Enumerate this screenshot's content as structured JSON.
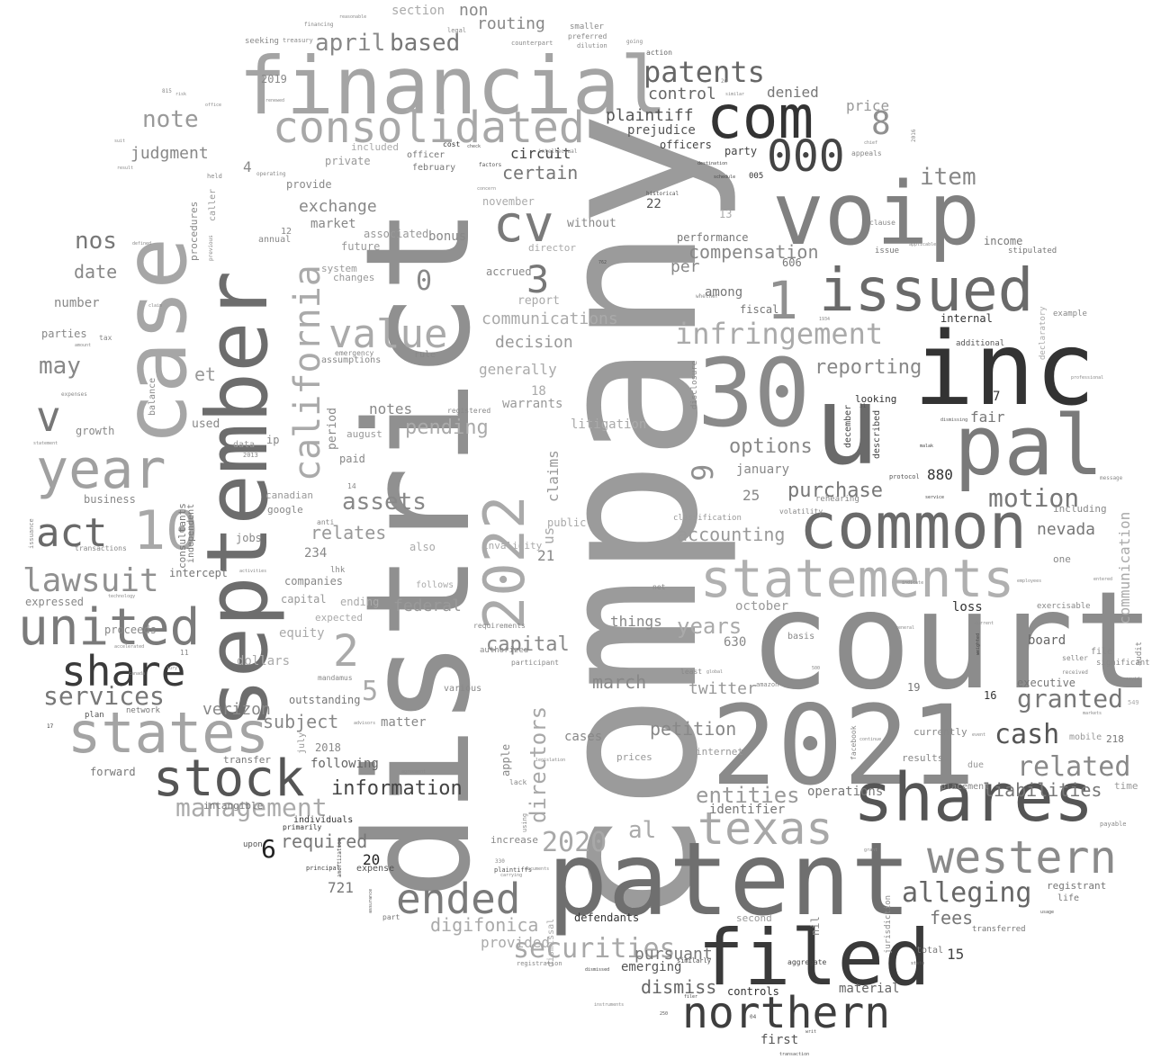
{
  "title": "Word cloud",
  "words": [
    {
      "text": "company"
    },
    {
      "text": "district"
    },
    {
      "text": "court"
    },
    {
      "text": "2021"
    },
    {
      "text": "patent"
    },
    {
      "text": "september"
    },
    {
      "text": "case"
    },
    {
      "text": "financial"
    },
    {
      "text": "inc"
    },
    {
      "text": "voip"
    },
    {
      "text": "filed"
    },
    {
      "text": "shares"
    },
    {
      "text": "common"
    },
    {
      "text": "statements"
    },
    {
      "text": "30"
    },
    {
      "text": "pal"
    },
    {
      "text": "issued"
    },
    {
      "text": "u"
    },
    {
      "text": "com"
    },
    {
      "text": "000"
    },
    {
      "text": "consolidated"
    },
    {
      "text": "2022"
    },
    {
      "text": "cv"
    },
    {
      "text": "northern"
    },
    {
      "text": "western"
    },
    {
      "text": "states"
    },
    {
      "text": "united"
    },
    {
      "text": "year"
    },
    {
      "text": "stock"
    },
    {
      "text": "share"
    },
    {
      "text": "texas"
    },
    {
      "text": "ended"
    },
    {
      "text": "10"
    },
    {
      "text": "act"
    },
    {
      "text": "lawsuit"
    },
    {
      "text": "california"
    },
    {
      "text": "v"
    },
    {
      "text": "value"
    },
    {
      "text": "patents"
    },
    {
      "text": "infringement"
    },
    {
      "text": "alleging"
    },
    {
      "text": "related"
    },
    {
      "text": "cash"
    },
    {
      "text": "securities"
    },
    {
      "text": "management"
    },
    {
      "text": "2020"
    },
    {
      "text": "8"
    },
    {
      "text": "1"
    },
    {
      "text": "3"
    },
    {
      "text": "2"
    },
    {
      "text": "9"
    },
    {
      "text": "services"
    },
    {
      "text": "motion"
    },
    {
      "text": "granted"
    },
    {
      "text": "entities"
    },
    {
      "text": "liabilities"
    },
    {
      "text": "assets"
    },
    {
      "text": "capital"
    },
    {
      "text": "april"
    },
    {
      "text": "based"
    },
    {
      "text": "may"
    },
    {
      "text": "note"
    },
    {
      "text": "years"
    },
    {
      "text": "nos"
    },
    {
      "text": "directors"
    },
    {
      "text": "information"
    },
    {
      "text": "digifonica"
    },
    {
      "text": "item"
    },
    {
      "text": "options"
    },
    {
      "text": "dismiss"
    },
    {
      "text": "reporting"
    },
    {
      "text": "purchase"
    },
    {
      "text": "pending"
    },
    {
      "text": "relates"
    },
    {
      "text": "compensation"
    },
    {
      "text": "control"
    },
    {
      "text": "plaintiff"
    },
    {
      "text": "petition"
    },
    {
      "text": "march"
    },
    {
      "text": "certain"
    },
    {
      "text": "exchange"
    },
    {
      "text": "judgment"
    },
    {
      "text": "communications"
    },
    {
      "text": "decision"
    },
    {
      "text": "subject"
    },
    {
      "text": "required"
    },
    {
      "text": "accounting"
    },
    {
      "text": "fees"
    },
    {
      "text": "federal"
    },
    {
      "text": "nevada"
    },
    {
      "text": "0"
    },
    {
      "text": "5"
    },
    {
      "text": "al"
    },
    {
      "text": "et"
    },
    {
      "text": "date"
    },
    {
      "text": "verizon"
    },
    {
      "text": "twitter"
    },
    {
      "text": "pursuant"
    },
    {
      "text": "provided"
    },
    {
      "text": "non"
    },
    {
      "text": "routing"
    },
    {
      "text": "section"
    },
    {
      "text": "price"
    },
    {
      "text": "denied"
    },
    {
      "text": "prejudice"
    },
    {
      "text": "officers"
    },
    {
      "text": "circuit"
    },
    {
      "text": "party"
    },
    {
      "text": "generally"
    },
    {
      "text": "warrants"
    },
    {
      "text": "notes"
    },
    {
      "text": "claims"
    },
    {
      "text": "us"
    },
    {
      "text": "emerging"
    },
    {
      "text": "material"
    },
    {
      "text": "first"
    },
    {
      "text": "controls"
    },
    {
      "text": "defendants"
    },
    {
      "text": "dollars"
    },
    {
      "text": "equity"
    },
    {
      "text": "outstanding"
    },
    {
      "text": "following"
    },
    {
      "text": "matter"
    },
    {
      "text": "cases"
    },
    {
      "text": "things"
    },
    {
      "text": "capital"
    },
    {
      "text": "communication"
    },
    {
      "text": "operations"
    },
    {
      "text": "identifier"
    },
    {
      "text": "fair"
    },
    {
      "text": "january"
    },
    {
      "text": "october"
    },
    {
      "text": "board"
    },
    {
      "text": "executive"
    },
    {
      "text": "loss"
    },
    {
      "text": "internal"
    },
    {
      "text": "performance"
    },
    {
      "text": "fiscal"
    },
    {
      "text": "among"
    },
    {
      "text": "per"
    },
    {
      "text": "income"
    },
    {
      "text": "number"
    },
    {
      "text": "parties"
    },
    {
      "text": "business"
    },
    {
      "text": "growth"
    },
    {
      "text": "proceeds"
    },
    {
      "text": "forward"
    },
    {
      "text": "expressed"
    },
    {
      "text": "market"
    },
    {
      "text": "associated"
    },
    {
      "text": "future"
    },
    {
      "text": "system"
    },
    {
      "text": "changes"
    },
    {
      "text": "bonus"
    },
    {
      "text": "accrued"
    },
    {
      "text": "report"
    },
    {
      "text": "director"
    },
    {
      "text": "november"
    },
    {
      "text": "february"
    },
    {
      "text": "officer"
    },
    {
      "text": "private"
    },
    {
      "text": "provide"
    },
    {
      "text": "included"
    },
    {
      "text": "without"
    },
    {
      "text": "litigation"
    },
    {
      "text": "public"
    },
    {
      "text": "invalidity"
    },
    {
      "text": "also"
    },
    {
      "text": "follows"
    },
    {
      "text": "ending"
    },
    {
      "text": "expected"
    },
    {
      "text": "companies"
    },
    {
      "text": "intercept"
    },
    {
      "text": "jobs"
    },
    {
      "text": "google"
    },
    {
      "text": "canadian"
    },
    {
      "text": "period"
    },
    {
      "text": "paid"
    },
    {
      "text": "august"
    },
    {
      "text": "ip"
    },
    {
      "text": "used"
    },
    {
      "text": "data"
    },
    {
      "text": "2019"
    },
    {
      "text": "2018"
    },
    {
      "text": "july"
    },
    {
      "text": "apple"
    },
    {
      "text": "internet"
    },
    {
      "text": "prices"
    },
    {
      "text": "mobile"
    },
    {
      "text": "results"
    },
    {
      "text": "currently"
    },
    {
      "text": "due"
    },
    {
      "text": "placement"
    },
    {
      "text": "time"
    },
    {
      "text": "life"
    },
    {
      "text": "registrant"
    },
    {
      "text": "transferred"
    },
    {
      "text": "total"
    },
    {
      "text": "example"
    },
    {
      "text": "including"
    },
    {
      "text": "one"
    },
    {
      "text": "additional"
    },
    {
      "text": "looking"
    },
    {
      "text": "december"
    },
    {
      "text": "described"
    },
    {
      "text": "880"
    },
    {
      "text": "22"
    },
    {
      "text": "005"
    },
    {
      "text": "4"
    },
    {
      "text": "13"
    },
    {
      "text": "12"
    },
    {
      "text": "14"
    },
    {
      "text": "18"
    },
    {
      "text": "21"
    },
    {
      "text": "25"
    },
    {
      "text": "234"
    },
    {
      "text": "606"
    },
    {
      "text": "630"
    },
    {
      "text": "721"
    },
    {
      "text": "19"
    },
    {
      "text": "16"
    },
    {
      "text": "15"
    },
    {
      "text": "20"
    },
    {
      "text": "6"
    },
    {
      "text": "7"
    },
    {
      "text": "nil"
    },
    {
      "text": "second"
    },
    {
      "text": "increase"
    },
    {
      "text": "expense"
    },
    {
      "text": "upon"
    },
    {
      "text": "individuals"
    },
    {
      "text": "primarily"
    },
    {
      "text": "intangible"
    },
    {
      "text": "transfer"
    },
    {
      "text": "network"
    },
    {
      "text": "plan"
    },
    {
      "text": "consultants"
    },
    {
      "text": "independent"
    },
    {
      "text": "procedures"
    },
    {
      "text": "caller"
    },
    {
      "text": "annual"
    },
    {
      "text": "anti"
    },
    {
      "text": "assumptions"
    },
    {
      "text": "emergency"
    },
    {
      "text": "rule"
    },
    {
      "text": "registered"
    },
    {
      "text": "stipulated"
    },
    {
      "text": "issue"
    },
    {
      "text": "clause"
    },
    {
      "text": "jurisdiction"
    },
    {
      "text": "exercisable"
    },
    {
      "text": "significant"
    },
    {
      "text": "audit"
    },
    {
      "text": "file"
    },
    {
      "text": "seller"
    },
    {
      "text": "received"
    },
    {
      "text": "payable"
    },
    {
      "text": "dismissal"
    },
    {
      "text": "balance"
    },
    {
      "text": "classification"
    },
    {
      "text": "net"
    },
    {
      "text": "volatility"
    },
    {
      "text": "rehearing"
    },
    {
      "text": "disclosure"
    },
    {
      "text": "declaratory"
    },
    {
      "text": "facebook"
    },
    {
      "text": "amazon"
    },
    {
      "text": "basis"
    },
    {
      "text": "mandamus"
    },
    {
      "text": "lhk"
    },
    {
      "text": "authorized"
    },
    {
      "text": "participant"
    },
    {
      "text": "requirements"
    },
    {
      "text": "various"
    },
    {
      "text": "aggregate"
    },
    {
      "text": "similarly"
    },
    {
      "text": "plaintiffs"
    },
    {
      "text": "registration"
    },
    {
      "text": "part"
    },
    {
      "text": "principal"
    },
    {
      "text": "amortization"
    },
    {
      "text": "seeking"
    },
    {
      "text": "treasury"
    },
    {
      "text": "legal"
    },
    {
      "text": "smaller"
    },
    {
      "text": "preferred"
    },
    {
      "text": "dilution"
    },
    {
      "text": "going"
    },
    {
      "text": "action"
    },
    {
      "text": "counterpart"
    },
    {
      "text": "financing"
    },
    {
      "text": "reasonable"
    },
    {
      "text": "renewed"
    },
    {
      "text": "office"
    },
    {
      "text": "risk"
    },
    {
      "text": "held"
    },
    {
      "text": "operating"
    },
    {
      "text": "concern"
    },
    {
      "text": "factors"
    },
    {
      "text": "check"
    },
    {
      "text": "cost"
    },
    {
      "text": "intellectual"
    },
    {
      "text": "historical"
    },
    {
      "text": "destination"
    },
    {
      "text": "schedule"
    },
    {
      "text": "whether"
    },
    {
      "text": "similar"
    },
    {
      "text": "appeals"
    },
    {
      "text": "chief"
    },
    {
      "text": "2016"
    },
    {
      "text": "26"
    },
    {
      "text": "protocol"
    },
    {
      "text": "dismissing"
    },
    {
      "text": "malak"
    },
    {
      "text": "weighted"
    },
    {
      "text": "service"
    },
    {
      "text": "employees"
    },
    {
      "text": "message"
    },
    {
      "text": "indicate"
    },
    {
      "text": "general"
    },
    {
      "text": "current"
    },
    {
      "text": "entered"
    },
    {
      "text": "professional"
    },
    {
      "text": "covid"
    },
    {
      "text": "transactions"
    },
    {
      "text": "issuance"
    },
    {
      "text": "expenses"
    },
    {
      "text": "statement"
    },
    {
      "text": "tax"
    },
    {
      "text": "amount"
    },
    {
      "text": "claim"
    },
    {
      "text": "defined"
    },
    {
      "text": "result"
    },
    {
      "text": "suit"
    },
    {
      "text": "previous"
    },
    {
      "text": "activities"
    },
    {
      "text": "technology"
    },
    {
      "text": "accelerated"
    },
    {
      "text": "jury"
    },
    {
      "text": "canada"
    },
    {
      "text": "2013"
    },
    {
      "text": "using"
    },
    {
      "text": "lack"
    },
    {
      "text": "least"
    },
    {
      "text": "global"
    },
    {
      "text": "markets"
    },
    {
      "text": "grant"
    },
    {
      "text": "agreement"
    },
    {
      "text": "advisors"
    },
    {
      "text": "event"
    },
    {
      "text": "continue"
    },
    {
      "text": "filer"
    },
    {
      "text": "dismissed"
    },
    {
      "text": "instruments"
    },
    {
      "text": "04"
    },
    {
      "text": "250"
    },
    {
      "text": "writ"
    },
    {
      "text": "state"
    },
    {
      "text": "documents"
    },
    {
      "text": "carrying"
    },
    {
      "text": "legislation"
    },
    {
      "text": "applicable"
    },
    {
      "text": "assurance"
    },
    {
      "text": "usage"
    },
    {
      "text": "transaction"
    },
    {
      "text": "17"
    },
    {
      "text": "11"
    },
    {
      "text": "549"
    },
    {
      "text": "218"
    },
    {
      "text": "330"
    },
    {
      "text": "762"
    },
    {
      "text": "815"
    },
    {
      "text": "500"
    },
    {
      "text": "1934"
    },
    {
      "text": "31"
    }
  ]
}
